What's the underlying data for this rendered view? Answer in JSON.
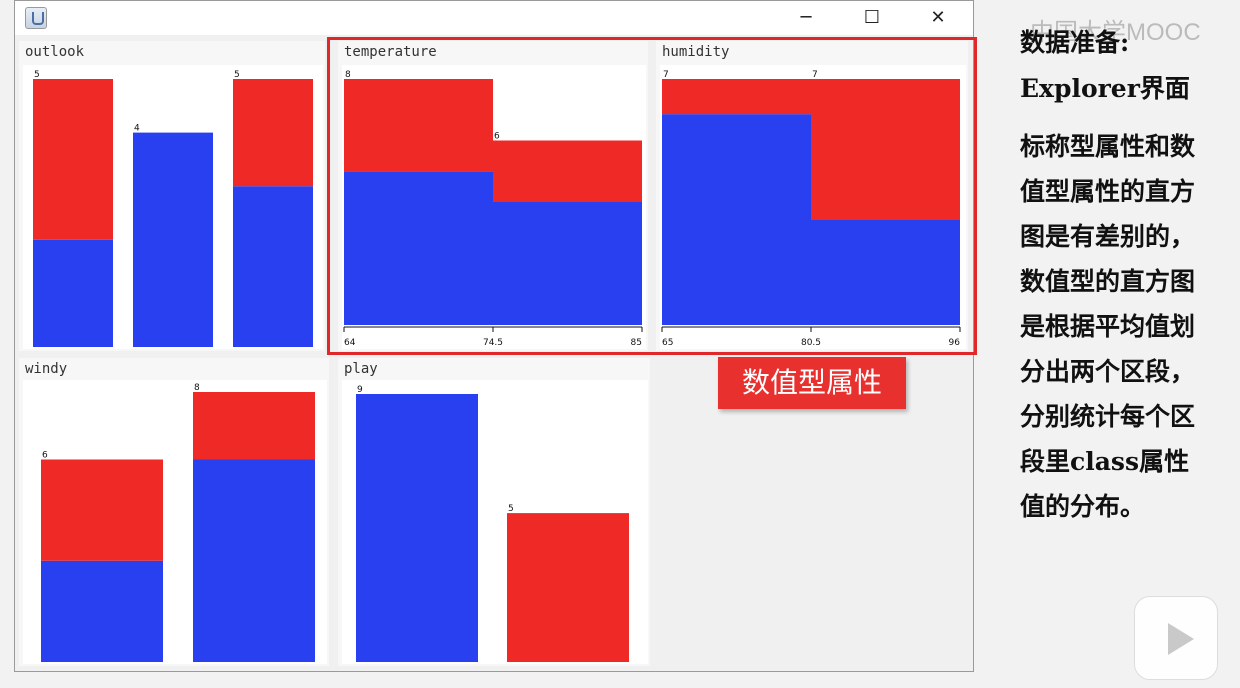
{
  "window": {
    "minimize_glyph": "─",
    "maximize_glyph": "☐",
    "close_glyph": "✕",
    "app_icon": "java-coffee-icon"
  },
  "colors": {
    "class_a": "#2840f0",
    "class_b": "#ef2a26",
    "callout": "#e0282b"
  },
  "panels": {
    "outlook": {
      "title": "outlook"
    },
    "temperature": {
      "title": "temperature"
    },
    "humidity": {
      "title": "humidity"
    },
    "windy": {
      "title": "windy"
    },
    "play": {
      "title": "play"
    }
  },
  "chart_data": [
    {
      "title": "outlook",
      "type": "bar",
      "stacked": true,
      "ylim": [
        0,
        5
      ],
      "categories": [
        "",
        "",
        ""
      ],
      "series": [
        {
          "values": [
            2,
            4,
            3
          ]
        },
        {
          "values": [
            3,
            0,
            2
          ]
        }
      ],
      "totals": [
        5,
        4,
        5
      ],
      "count_labels": [
        "5",
        "4",
        "5"
      ]
    },
    {
      "title": "temperature",
      "type": "bar",
      "stacked": true,
      "histogram": true,
      "ylim": [
        0,
        8
      ],
      "categories": [
        "64–74.5",
        "74.5–85"
      ],
      "series": [
        {
          "values": [
            5,
            4
          ]
        },
        {
          "values": [
            3,
            2
          ]
        }
      ],
      "totals": [
        8,
        6
      ],
      "count_labels": [
        "8",
        "6"
      ],
      "tick_labels": [
        "64",
        "74.5",
        "85"
      ]
    },
    {
      "title": "humidity",
      "type": "bar",
      "stacked": true,
      "histogram": true,
      "ylim": [
        0,
        7
      ],
      "categories": [
        "65–80.5",
        "80.5–96"
      ],
      "series": [
        {
          "values": [
            6,
            3
          ]
        },
        {
          "values": [
            1,
            4
          ]
        }
      ],
      "totals": [
        7,
        7
      ],
      "count_labels": [
        "7",
        "7"
      ],
      "tick_labels": [
        "65",
        "80.5",
        "96"
      ]
    },
    {
      "title": "windy",
      "type": "bar",
      "stacked": true,
      "ylim": [
        0,
        8
      ],
      "categories": [
        "",
        ""
      ],
      "series": [
        {
          "values": [
            3,
            6
          ]
        },
        {
          "values": [
            3,
            2
          ]
        }
      ],
      "totals": [
        6,
        8
      ],
      "count_labels": [
        "6",
        "8"
      ]
    },
    {
      "title": "play",
      "type": "bar",
      "stacked": true,
      "ylim": [
        0,
        9
      ],
      "categories": [
        "",
        ""
      ],
      "series": [
        {
          "values": [
            9,
            0
          ]
        },
        {
          "values": [
            0,
            5
          ]
        }
      ],
      "totals": [
        9,
        5
      ],
      "count_labels": [
        "9",
        "5"
      ]
    }
  ],
  "callout": {
    "label": "数值型属性"
  },
  "side": {
    "heading_line1": "数据准备:",
    "heading_line2": "Explorer界面",
    "body": [
      "标称型属性和数",
      "值型属性的直方",
      "图是有差别的，",
      "数值型的直方图",
      "是根据平均值划",
      "分出两个区段，",
      "分别统计每个区",
      "段里class属性",
      "值的分布。"
    ]
  },
  "watermark": "中国大学MOOC",
  "player_icon": "play-icon"
}
